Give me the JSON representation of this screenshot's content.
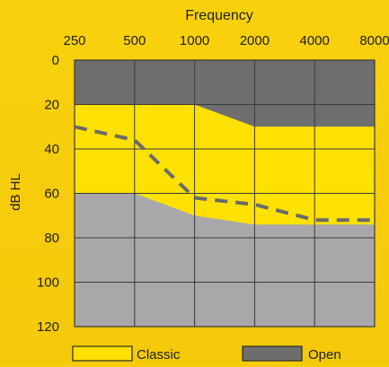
{
  "chart_data": {
    "type": "area",
    "title": "Frequency",
    "xlabel": "Frequency",
    "ylabel": "dB HL",
    "x_ticks": [
      "250",
      "500",
      "1000",
      "2000",
      "4000",
      "8000"
    ],
    "y_ticks": [
      "0",
      "20",
      "40",
      "60",
      "80",
      "100",
      "120"
    ],
    "ylim": [
      0,
      120
    ],
    "y_inverted": true,
    "grid": true,
    "legend_position": "bottom",
    "colors": {
      "background": "#F6CD0B",
      "plot_background": "#FFE100",
      "open": "#6E6E6E",
      "classic": "#FFE100",
      "lower_region": "#A8A8AA",
      "grid": "#3A3A3A",
      "dashed_line": "#6A6A6A"
    },
    "series": [
      {
        "name": "Open",
        "kind": "area",
        "x": [
          "250",
          "500",
          "1000",
          "2000",
          "4000",
          "8000"
        ],
        "from": [
          0,
          0,
          0,
          0,
          0,
          0
        ],
        "to": [
          20,
          20,
          20,
          30,
          30,
          30
        ]
      },
      {
        "name": "Classic",
        "kind": "area",
        "x": [
          "250",
          "500",
          "1000",
          "2000",
          "4000",
          "8000"
        ],
        "from": [
          20,
          20,
          20,
          30,
          30,
          30
        ],
        "to": [
          60,
          60,
          70,
          74,
          74,
          74
        ]
      },
      {
        "kind": "area",
        "x": [
          "250",
          "500",
          "1000",
          "2000",
          "4000",
          "8000"
        ],
        "from": [
          60,
          60,
          70,
          74,
          74,
          74
        ],
        "to": [
          120,
          120,
          120,
          120,
          120,
          120
        ]
      },
      {
        "kind": "dashed-line",
        "x": [
          "250",
          "500",
          "1000",
          "2000",
          "4000",
          "8000"
        ],
        "values": [
          30,
          36,
          62,
          65,
          72,
          72
        ]
      }
    ],
    "legend": [
      {
        "label": "Classic",
        "color": "#FFE100"
      },
      {
        "label": "Open",
        "color": "#6E6E6E"
      }
    ]
  }
}
